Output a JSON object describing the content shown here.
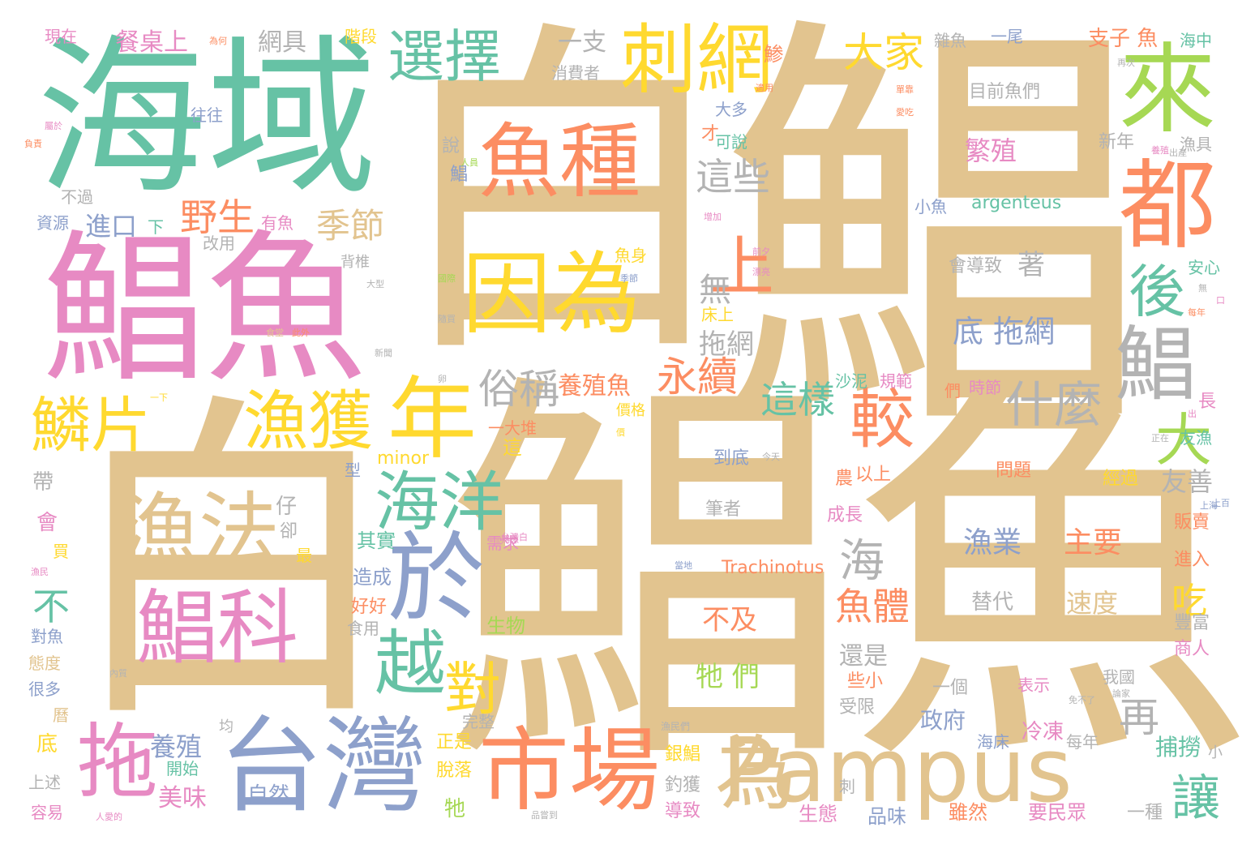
{
  "palette": {
    "tan": "#e2c48f",
    "green": "#66c2a5",
    "pink": "#e78ac3",
    "orange": "#fc8d62",
    "yellow": "#ffd92f",
    "blue": "#8da0cb",
    "gray": "#b3b3b3",
    "lime": "#a6d854"
  },
  "words": {
    "w0": "白",
    "w1": "鯧",
    "w2": "鯧魚",
    "w3": "白",
    "w4": "海域",
    "w5": "鯧魚",
    "w6": "Pampus",
    "w7": "台灣",
    "w8": "市場",
    "w9": "於",
    "w10": "年",
    "w11": "魚種",
    "w12": "因為",
    "w13": "漁法",
    "w14": "鯧科",
    "w15": "刺網",
    "w16": "來",
    "w17": "都",
    "w18": "選擇",
    "w19": "漁獲",
    "w20": "海洋",
    "w21": "越",
    "w22": "拖",
    "w23": "為",
    "w24": "鯧",
    "w25": "鱗片",
    "w26": "對",
    "w27": "後",
    "w28": "較",
    "w29": "大家",
    "w30": "上",
    "w31": "永續",
    "w32": "什麼",
    "w33": "大",
    "w34": "野生",
    "w35": "俗稱",
    "w36": "季節",
    "w37": "這樣",
    "w38": "這些",
    "w39": "魚體",
    "w40": "海",
    "w41": "讓",
    "w42": "再",
    "w43": "吃",
    "w44": "不",
    "w45": "無",
    "w46": "拖網",
    "w47": "底 拖網",
    "w48": "漁業",
    "w49": "主要",
    "w50": "速度",
    "w51": "繁殖",
    "w52": "目前魚們",
    "w53": "會導致",
    "w54": "著",
    "w55": "牠 們",
    "w56": "不及",
    "w57": "還是",
    "w58": "養殖魚",
    "w59": "養殖",
    "w60": "美味",
    "w61": "進口",
    "w62": "一支",
    "w63": "支子 魚",
    "w64": "網具",
    "w65": "餐桌上",
    "w66": "argenteus",
    "w67": "Trachinotus",
    "w68": "minor",
    "w69": "友善",
    "w70": "政府",
    "w71": "冷凍",
    "w72": "捕撈",
    "w73": "自然",
    "w74": "替代",
    "w75": "到底",
    "w76": "筆者",
    "w77": "問題",
    "w78": "經過",
    "w79": "販賣",
    "w80": "進入",
    "w81": "豐富",
    "w82": "商人",
    "w83": "一種",
    "w84": "要民眾",
    "w85": "雖然",
    "w86": "品味",
    "w87": "生態",
    "w88": "導致",
    "w89": "釣獲",
    "w90": "銀鯧",
    "w91": "正是",
    "w92": "脫落",
    "w93": "牠",
    "w94": "開始",
    "w95": "造成",
    "w96": "好好",
    "w97": "食用",
    "w98": "生物",
    "w99": "需求",
    "w100": "其實",
    "w101": "成長",
    "w102": "以上",
    "w103": "農",
    "w104": "沙泥",
    "w105": "規範",
    "w106": "時節",
    "w107": "們",
    "w108": "一個",
    "w109": "些小",
    "w110": "受限",
    "w111": "表示",
    "w112": "我國",
    "w113": "海床",
    "w114": "每年",
    "w115": "小魚",
    "w116": "新年",
    "w117": "漁具",
    "w118": "安心",
    "w119": "友漁",
    "w120": "長",
    "w121": "海中",
    "w122": "雜魚",
    "w123": "一尾",
    "w124": "消費者",
    "w125": "大多",
    "w126": "才",
    "w127": "可說",
    "w128": "鯵",
    "w129": "階段",
    "w130": "現在",
    "w131": "往往",
    "w132": "說",
    "w133": "鯧",
    "w134": "不過",
    "w135": "資源",
    "w136": "有魚",
    "w137": "下",
    "w138": "改用",
    "w139": "背椎",
    "w140": "魚身",
    "w141": "床上",
    "w142": "價格",
    "w143": "一大堆",
    "w144": "這",
    "w145": "型",
    "w146": "帶",
    "w147": "會",
    "w148": "買",
    "w149": "仔",
    "w150": "卻",
    "w151": "最",
    "w152": "對魚",
    "w153": "態度",
    "w154": "很多",
    "w155": "曆",
    "w156": "底",
    "w157": "上述",
    "w158": "容易",
    "w159": "均",
    "w160": "完整",
    "w161": "刺",
    "w162": "漁民們",
    "w163": "人愛的",
    "w164": "品嘗到",
    "w165": "免不了",
    "w166": "論家",
    "w167": "小",
    "w168": "為何",
    "w169": "再次",
    "w170": "適用",
    "w171": "單靠",
    "w172": "愛吃",
    "w173": "屬於",
    "w174": "負責",
    "w175": "養殖",
    "w176": "人員",
    "w177": "國際",
    "w178": "隨買",
    "w179": "食堂",
    "w180": "此外",
    "w181": "新聞",
    "w182": "增加",
    "w183": "前夕",
    "w184": "漂亮",
    "w185": "每年",
    "w186": "大型",
    "w187": "卵",
    "w188": "今天",
    "w189": "正在",
    "w190": "出",
    "w191": "上海",
    "w192": "熟悉",
    "w193": "內質",
    "w194": "漁民",
    "w195": "一下",
    "w196": "價",
    "w197": "當地",
    "w198": "出產",
    "w199": "口",
    "w200": "季節",
    "w201": "無",
    "w202": "上百",
    "w203": "台灣白"
  }
}
